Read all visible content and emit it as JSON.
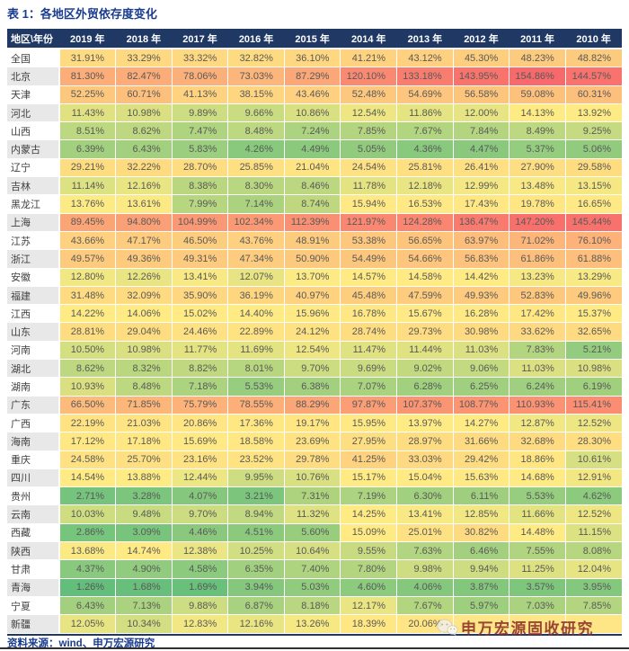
{
  "chart_data": {
    "type": "heatmap",
    "title": "表 1：各地区外贸依存度变化",
    "unit": "percent",
    "columns": [
      "地区\\年份",
      "2019 年",
      "2018 年",
      "2017 年",
      "2016 年",
      "2015 年",
      "2014 年",
      "2013 年",
      "2012 年",
      "2011 年",
      "2010 年"
    ],
    "rows": [
      {
        "region": "全国",
        "values": [
          31.91,
          33.29,
          33.32,
          32.82,
          36.1,
          41.21,
          43.12,
          45.3,
          48.23,
          48.82
        ]
      },
      {
        "region": "北京",
        "values": [
          81.3,
          82.47,
          78.06,
          73.03,
          87.29,
          120.1,
          133.18,
          143.95,
          154.86,
          144.57
        ]
      },
      {
        "region": "天津",
        "values": [
          52.25,
          60.71,
          41.13,
          38.15,
          43.46,
          52.48,
          54.69,
          56.58,
          59.08,
          60.31
        ]
      },
      {
        "region": "河北",
        "values": [
          11.43,
          10.98,
          9.89,
          9.66,
          10.86,
          12.54,
          11.86,
          12.0,
          14.13,
          13.92
        ]
      },
      {
        "region": "山西",
        "values": [
          8.51,
          8.62,
          7.47,
          8.48,
          7.24,
          7.85,
          7.67,
          7.84,
          8.49,
          9.25
        ]
      },
      {
        "region": "内蒙古",
        "values": [
          6.39,
          6.43,
          5.83,
          4.26,
          4.49,
          5.05,
          4.36,
          4.47,
          5.37,
          5.06
        ]
      },
      {
        "region": "辽宁",
        "values": [
          29.21,
          32.22,
          28.7,
          25.85,
          21.04,
          24.54,
          25.81,
          26.41,
          27.9,
          29.58
        ]
      },
      {
        "region": "吉林",
        "values": [
          11.14,
          12.16,
          8.38,
          8.3,
          8.46,
          11.78,
          12.18,
          12.99,
          13.48,
          13.15
        ]
      },
      {
        "region": "黑龙江",
        "values": [
          13.76,
          13.61,
          7.99,
          7.14,
          8.74,
          15.94,
          16.53,
          17.43,
          19.78,
          16.65
        ]
      },
      {
        "region": "上海",
        "values": [
          89.45,
          94.8,
          104.99,
          102.34,
          112.39,
          121.97,
          124.28,
          136.47,
          147.2,
          145.44
        ]
      },
      {
        "region": "江苏",
        "values": [
          43.66,
          47.17,
          46.5,
          43.76,
          48.91,
          53.38,
          56.65,
          63.97,
          71.02,
          76.1
        ]
      },
      {
        "region": "浙江",
        "values": [
          49.57,
          49.36,
          49.31,
          47.34,
          50.9,
          54.49,
          54.66,
          56.83,
          61.86,
          61.88
        ]
      },
      {
        "region": "安徽",
        "values": [
          12.8,
          12.26,
          13.41,
          12.07,
          13.7,
          14.57,
          14.58,
          14.42,
          13.23,
          13.29
        ]
      },
      {
        "region": "福建",
        "values": [
          31.48,
          32.09,
          35.9,
          36.19,
          40.97,
          45.48,
          47.59,
          49.93,
          52.83,
          49.96
        ]
      },
      {
        "region": "江西",
        "values": [
          14.22,
          14.06,
          15.02,
          14.4,
          15.96,
          16.78,
          15.67,
          16.28,
          17.42,
          15.37
        ]
      },
      {
        "region": "山东",
        "values": [
          28.81,
          29.04,
          24.46,
          22.89,
          24.12,
          28.74,
          29.73,
          30.98,
          33.62,
          32.65
        ]
      },
      {
        "region": "河南",
        "values": [
          10.5,
          10.98,
          11.77,
          11.69,
          12.54,
          11.47,
          11.44,
          11.03,
          7.83,
          5.21
        ]
      },
      {
        "region": "湖北",
        "values": [
          8.62,
          8.32,
          8.82,
          8.01,
          9.7,
          9.69,
          9.02,
          9.06,
          11.03,
          10.98
        ]
      },
      {
        "region": "湖南",
        "values": [
          10.93,
          8.48,
          7.18,
          5.53,
          6.38,
          7.07,
          6.28,
          6.25,
          6.24,
          6.19
        ]
      },
      {
        "region": "广东",
        "values": [
          66.5,
          71.85,
          75.79,
          78.55,
          88.29,
          97.87,
          107.37,
          108.77,
          110.93,
          115.41
        ]
      },
      {
        "region": "广西",
        "values": [
          22.19,
          21.03,
          20.86,
          17.36,
          19.17,
          15.95,
          13.97,
          14.27,
          12.87,
          12.52
        ]
      },
      {
        "region": "海南",
        "values": [
          17.12,
          17.18,
          15.69,
          18.58,
          23.69,
          27.95,
          28.97,
          31.66,
          32.68,
          28.3
        ]
      },
      {
        "region": "重庆",
        "values": [
          24.58,
          25.7,
          23.16,
          23.52,
          29.78,
          41.25,
          33.03,
          29.42,
          18.86,
          10.61
        ]
      },
      {
        "region": "四川",
        "values": [
          14.54,
          13.88,
          12.44,
          9.95,
          10.76,
          15.17,
          15.04,
          15.63,
          14.68,
          12.91
        ]
      },
      {
        "region": "贵州",
        "values": [
          2.71,
          3.28,
          4.07,
          3.21,
          7.31,
          7.19,
          6.3,
          6.11,
          5.53,
          4.62
        ]
      },
      {
        "region": "云南",
        "values": [
          10.03,
          9.48,
          9.7,
          8.94,
          11.32,
          14.25,
          13.41,
          12.85,
          11.66,
          12.52
        ]
      },
      {
        "region": "西藏",
        "values": [
          2.86,
          3.09,
          4.46,
          4.51,
          5.6,
          15.09,
          25.01,
          30.82,
          14.48,
          11.15
        ]
      },
      {
        "region": "陕西",
        "values": [
          13.68,
          14.74,
          12.38,
          10.25,
          10.64,
          9.55,
          7.63,
          6.46,
          7.55,
          8.08
        ]
      },
      {
        "region": "甘肃",
        "values": [
          4.37,
          4.9,
          4.58,
          6.35,
          7.4,
          7.8,
          9.98,
          9.94,
          11.25,
          12.04
        ]
      },
      {
        "region": "青海",
        "values": [
          1.26,
          1.68,
          1.69,
          3.94,
          5.03,
          4.6,
          4.06,
          3.87,
          3.57,
          3.95
        ]
      },
      {
        "region": "宁夏",
        "values": [
          6.43,
          7.13,
          9.88,
          6.87,
          8.18,
          12.17,
          7.67,
          5.97,
          7.03,
          7.85
        ]
      },
      {
        "region": "新疆",
        "values": [
          12.05,
          10.34,
          12.83,
          12.16,
          13.26,
          18.39,
          20.06,
          null,
          null,
          null
        ]
      }
    ],
    "color_scale": {
      "min_color": "#63BE7B",
      "mid_color": "#FFEB84",
      "max_color": "#F8696B",
      "mid_at": "median"
    }
  },
  "footer": {
    "source": "资料来源：wind、申万宏源研究"
  },
  "watermark": {
    "text": "申万宏源固收研究",
    "icon": "wechat-icon"
  },
  "colors": {
    "title_text": "#1A3C8F",
    "footer_text": "#1A3C8F",
    "header_bg": "#1F3864",
    "header_text": "#FFFFFF",
    "row_label_alt_bg": "#E8E8E8",
    "row_label_bg": "#FFFFFF",
    "label_text": "#3F3F3F",
    "value_text": "#595959",
    "table_bottom_border": "#1F3864",
    "page_rule": "#2F2F2F",
    "watermark_text": "#8C2F27",
    "obscured_cell_bg": "#FEE687"
  }
}
